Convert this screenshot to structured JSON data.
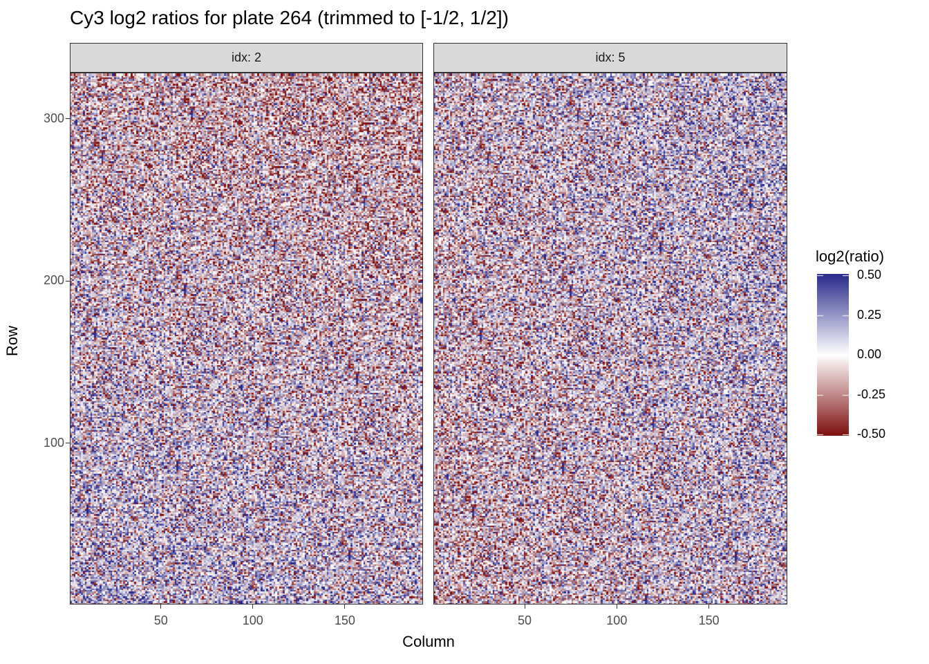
{
  "chart_data": {
    "type": "heatmap",
    "title": "Cy3 log2 ratios for plate 264 (trimmed to [-1/2, 1/2])",
    "xlabel": "Column",
    "ylabel": "Row",
    "xlim": [
      1,
      192
    ],
    "ylim": [
      1,
      328
    ],
    "x_ticks": [
      "50",
      "100",
      "150"
    ],
    "y_ticks": [
      "100",
      "200",
      "300"
    ],
    "x_tick_values": [
      50,
      100,
      150
    ],
    "y_tick_values": [
      100,
      200,
      300
    ],
    "facets": [
      {
        "label": "idx: 2"
      },
      {
        "label": "idx: 5"
      }
    ],
    "legend": {
      "title": "log2(ratio)",
      "labels": [
        "0.50",
        "0.25",
        "0.00",
        "-0.25",
        "-0.50"
      ],
      "values": [
        0.5,
        0.25,
        0,
        -0.25,
        -0.5
      ],
      "low_color": "#7f1010",
      "mid_color": "#ffffff",
      "high_color": "#2a2a8c",
      "placement": "right"
    },
    "grid": false
  }
}
